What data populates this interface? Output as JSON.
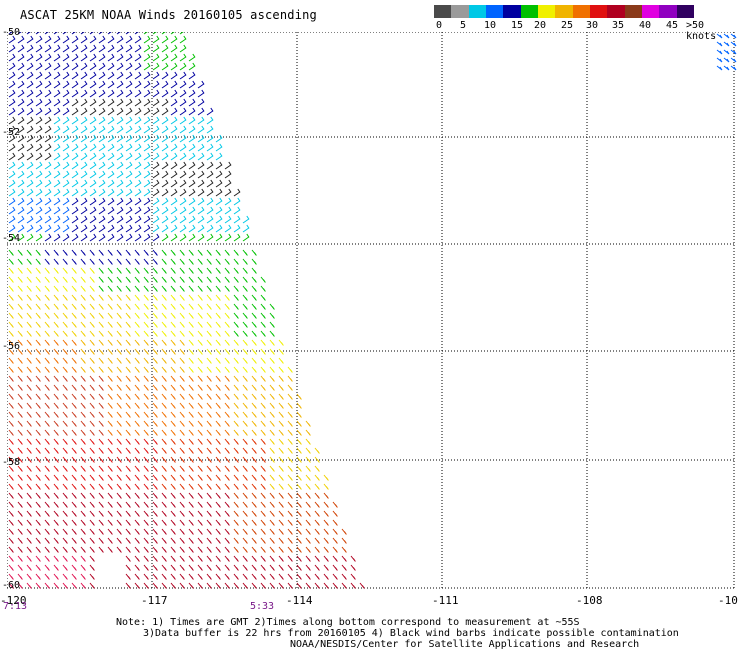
{
  "title": "ASCAT 25KM NOAA Winds 20160105 ascending",
  "legend": {
    "colors": [
      "#4a4a4a",
      "#9a9a9a",
      "#00c8e6",
      "#0064ff",
      "#0000a0",
      "#00c000",
      "#f0f000",
      "#f0b400",
      "#f07000",
      "#e01010",
      "#b00020",
      "#8a3a1a",
      "#e000e0",
      "#9000c0",
      "#300060"
    ],
    "labels": [
      "0",
      "5",
      "10",
      "15",
      "20",
      "25",
      "30",
      "35",
      "40",
      "45",
      ">50 knots"
    ]
  },
  "map": {
    "lat_labels": [
      "-50",
      "-52",
      "-54",
      "-56",
      "-58",
      "-60"
    ],
    "lon_labels": [
      "-120",
      "-117",
      "-114",
      "-111",
      "-108",
      "-10"
    ]
  },
  "times": [
    "7:13",
    "5:33"
  ],
  "notes": [
    "Note: 1) Times are GMT 2)Times along bottom correspond to measurement at ~55S",
    "3)Data buffer is 22 hrs from 20160105 4) Black wind barbs indicate possible contamination",
    "NOAA/NESDIS/Center for Satellite Applications and Research"
  ]
}
